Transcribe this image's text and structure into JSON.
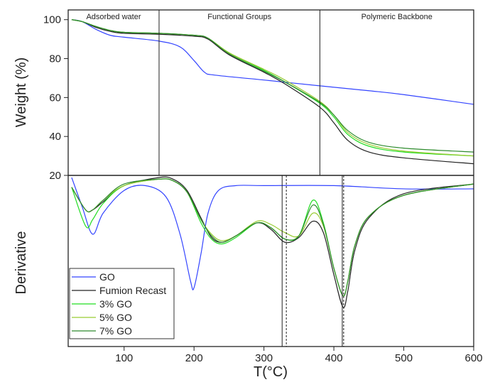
{
  "chart_data": [
    {
      "type": "line",
      "panel": "top",
      "ylabel": "Weight (%)",
      "xlim": [
        20,
        600
      ],
      "ylim": [
        20,
        105
      ],
      "yticks": [
        20,
        40,
        60,
        80,
        100
      ],
      "grid": false,
      "regions": [
        {
          "label": "Adsorbed water",
          "from": 20,
          "to": 150
        },
        {
          "label": "Functional Groups",
          "from": 150,
          "to": 380
        },
        {
          "label": "Polymeric Backbone",
          "from": 380,
          "to": 600
        }
      ],
      "series": [
        {
          "name": "GO",
          "color": "#3344ff",
          "x": [
            25,
            40,
            60,
            80,
            100,
            150,
            180,
            200,
            215,
            230,
            300,
            380,
            450,
            500,
            600
          ],
          "y": [
            100,
            99,
            95,
            92,
            91,
            89,
            86,
            79,
            73,
            71.5,
            69,
            66,
            63.5,
            61.5,
            56.5
          ]
        },
        {
          "name": "Fumion Recast",
          "color": "#222222",
          "x": [
            25,
            40,
            60,
            80,
            100,
            150,
            200,
            220,
            250,
            300,
            330,
            380,
            400,
            420,
            450,
            500,
            600
          ],
          "y": [
            100,
            99,
            96,
            94,
            93,
            92.5,
            91.5,
            90,
            82,
            73,
            67,
            55,
            47,
            38,
            32,
            29,
            26
          ]
        },
        {
          "name": "3% GO",
          "color": "#22dd22",
          "x": [
            25,
            40,
            60,
            80,
            100,
            150,
            200,
            220,
            250,
            300,
            330,
            380,
            400,
            420,
            450,
            500,
            600
          ],
          "y": [
            100,
            99,
            96.5,
            94.5,
            93.5,
            93,
            92,
            90.5,
            83,
            74,
            68,
            57,
            50,
            41,
            35,
            32,
            30
          ]
        },
        {
          "name": "5% GO",
          "color": "#99cc33",
          "x": [
            25,
            40,
            60,
            80,
            100,
            150,
            200,
            220,
            250,
            300,
            330,
            380,
            400,
            420,
            450,
            500,
            600
          ],
          "y": [
            100,
            99,
            96.5,
            94.5,
            93.5,
            93,
            92,
            90.5,
            83,
            74.5,
            69,
            58,
            51,
            42,
            36,
            32.5,
            30
          ]
        },
        {
          "name": "7% GO",
          "color": "#2e8b2e",
          "x": [
            25,
            40,
            60,
            80,
            100,
            150,
            200,
            220,
            250,
            300,
            330,
            380,
            400,
            420,
            450,
            500,
            600
          ],
          "y": [
            100,
            99,
            96.5,
            94.5,
            93.5,
            93,
            92,
            90.5,
            82.5,
            73.5,
            68,
            57.5,
            51,
            43,
            37,
            34,
            32
          ]
        }
      ]
    },
    {
      "type": "line",
      "panel": "bottom",
      "xlabel": "T(°C)",
      "ylabel": "Derivative",
      "xlim": [
        20,
        600
      ],
      "xticks": [
        100,
        200,
        300,
        400,
        500,
        600
      ],
      "ylim": [
        0,
        100
      ],
      "grid": false,
      "legend": "bottom-left",
      "reference_lines": [
        {
          "x": 326,
          "style": "solid"
        },
        {
          "x": 332,
          "style": "dashed"
        },
        {
          "x": 412,
          "style": "solid"
        },
        {
          "x": 414,
          "style": "dashed"
        }
      ],
      "series": [
        {
          "name": "GO",
          "color": "#3344ff",
          "x": [
            25,
            40,
            55,
            70,
            100,
            130,
            160,
            180,
            195,
            200,
            210,
            220,
            235,
            260,
            300,
            400,
            500,
            600
          ],
          "y": [
            100,
            82,
            65,
            78,
            92,
            95,
            88,
            65,
            36,
            32,
            53,
            78,
            92,
            95,
            95,
            95,
            93,
            93
          ]
        },
        {
          "name": "Fumion Recast",
          "color": "#222222",
          "x": [
            25,
            45,
            55,
            70,
            100,
            150,
            170,
            190,
            210,
            225,
            240,
            260,
            290,
            310,
            330,
            350,
            370,
            385,
            400,
            413,
            420,
            430,
            450,
            500,
            600
          ],
          "y": [
            94,
            80,
            80,
            85,
            95,
            100,
            99,
            92,
            75,
            63,
            60,
            64,
            72,
            68,
            60,
            63,
            73,
            66,
            40,
            20,
            30,
            55,
            75,
            90,
            96
          ]
        },
        {
          "name": "3% GO",
          "color": "#22dd22",
          "x": [
            25,
            45,
            55,
            70,
            100,
            150,
            170,
            190,
            210,
            225,
            240,
            260,
            290,
            310,
            330,
            350,
            370,
            385,
            400,
            413,
            420,
            430,
            450,
            500,
            600
          ],
          "y": [
            94,
            70,
            74,
            84,
            95,
            99,
            98,
            91,
            72,
            62,
            59,
            63,
            72,
            69,
            62,
            64,
            86,
            72,
            44,
            27,
            36,
            58,
            76,
            89,
            96
          ]
        },
        {
          "name": "5% GO",
          "color": "#99cc33",
          "x": [
            25,
            45,
            55,
            70,
            100,
            150,
            170,
            190,
            210,
            225,
            240,
            260,
            290,
            310,
            330,
            350,
            370,
            385,
            400,
            413,
            420,
            430,
            450,
            500,
            600
          ],
          "y": [
            94,
            80,
            80,
            86,
            95,
            99,
            98,
            91,
            74,
            65,
            61,
            64,
            73,
            71,
            66,
            64,
            78,
            70,
            44,
            27,
            36,
            58,
            76,
            89,
            96
          ]
        },
        {
          "name": "7% GO",
          "color": "#2e8b2e",
          "x": [
            25,
            45,
            55,
            70,
            100,
            150,
            170,
            190,
            210,
            225,
            240,
            260,
            290,
            310,
            330,
            350,
            370,
            385,
            400,
            413,
            420,
            430,
            450,
            500,
            600
          ],
          "y": [
            94,
            80,
            80,
            86,
            96,
            99,
            98,
            91,
            74,
            64,
            60,
            64,
            72,
            69,
            62,
            64,
            83,
            71,
            44,
            27,
            36,
            58,
            76,
            89,
            96
          ]
        }
      ]
    }
  ]
}
